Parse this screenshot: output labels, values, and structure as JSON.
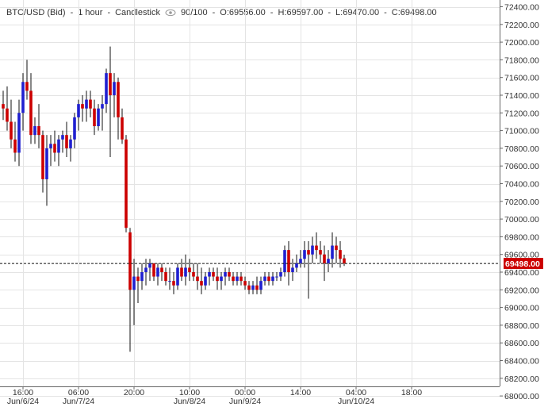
{
  "header": {
    "symbol": "BTC/USD (Bid)",
    "interval": "1 hour",
    "chart_type": "Candlestick",
    "visibility_icon": "eye-icon",
    "bars": "90/100",
    "open": "O:69556.00",
    "high": "H:69597.00",
    "low": "L:69470.00",
    "close": "C:69498.00"
  },
  "colors": {
    "up": "#1f1fd0",
    "down": "#cc0000",
    "grid": "#e4e4e4",
    "axis_text": "#333333",
    "current_price_bg": "#cc0000"
  },
  "chart_data": {
    "type": "candlestick",
    "ylim": [
      68000,
      72500
    ],
    "y_ticks": [
      "72400.00",
      "72200.00",
      "72000.00",
      "71800.00",
      "71600.00",
      "71400.00",
      "71200.00",
      "71000.00",
      "70800.00",
      "70600.00",
      "70400.00",
      "70200.00",
      "70000.00",
      "69800.00",
      "69600.00",
      "69400.00",
      "69200.00",
      "69000.00",
      "68800.00",
      "68600.00",
      "68400.00",
      "68200.00",
      "68000.00"
    ],
    "x_ticks": [
      {
        "time": "16:00",
        "date": "Jun/6/24",
        "index": 5
      },
      {
        "time": "06:00",
        "date": "Jun/7/24",
        "index": 19
      },
      {
        "time": "20:00",
        "date": "",
        "index": 33
      },
      {
        "time": "10:00",
        "date": "Jun/8/24",
        "index": 47
      },
      {
        "time": "00:00",
        "date": "Jun/9/24",
        "index": 61
      },
      {
        "time": "14:00",
        "date": "",
        "index": 75
      },
      {
        "time": "04:00",
        "date": "Jun/10/24",
        "index": 89
      },
      {
        "time": "18:00",
        "date": "",
        "index": 103
      }
    ],
    "current_price": "69498.00",
    "current_value": 69498,
    "candles": [
      [
        71300,
        71450,
        71120,
        71250
      ],
      [
        71250,
        71500,
        71000,
        71100
      ],
      [
        71100,
        71350,
        70800,
        70900
      ],
      [
        70900,
        71100,
        70650,
        70750
      ],
      [
        70750,
        71350,
        70600,
        71200
      ],
      [
        71200,
        71650,
        71000,
        71550
      ],
      [
        71550,
        71800,
        71350,
        71450
      ],
      [
        71450,
        71650,
        70850,
        70950
      ],
      [
        70950,
        71150,
        70850,
        71050
      ],
      [
        71050,
        71300,
        70800,
        70950
      ],
      [
        70950,
        71000,
        70300,
        70450
      ],
      [
        70450,
        70950,
        70150,
        70800
      ],
      [
        70800,
        70950,
        70600,
        70850
      ],
      [
        70850,
        71000,
        70650,
        70750
      ],
      [
        70750,
        70950,
        70600,
        70900
      ],
      [
        70900,
        71000,
        70750,
        70950
      ],
      [
        70950,
        71100,
        70700,
        70800
      ],
      [
        70800,
        70950,
        70650,
        70900
      ],
      [
        70900,
        71200,
        70800,
        71150
      ],
      [
        71150,
        71350,
        71000,
        71300
      ],
      [
        71300,
        71400,
        71100,
        71250
      ],
      [
        71250,
        71450,
        71100,
        71350
      ],
      [
        71350,
        71450,
        71150,
        71250
      ],
      [
        71250,
        71350,
        70950,
        71050
      ],
      [
        71050,
        71300,
        71000,
        71250
      ],
      [
        71250,
        71400,
        71000,
        71300
      ],
      [
        71300,
        71700,
        71200,
        71650
      ],
      [
        71650,
        71950,
        70700,
        71400
      ],
      [
        71400,
        71650,
        71150,
        71550
      ],
      [
        71550,
        71600,
        70900,
        71150
      ],
      [
        71150,
        71250,
        70850,
        70900
      ],
      [
        70900,
        70950,
        69850,
        69900
      ],
      [
        69850,
        69900,
        68500,
        69200
      ],
      [
        69200,
        69550,
        68800,
        69350
      ],
      [
        69350,
        69450,
        69050,
        69300
      ],
      [
        69300,
        69500,
        69200,
        69400
      ],
      [
        69400,
        69550,
        69250,
        69450
      ],
      [
        69450,
        69550,
        69300,
        69500
      ],
      [
        69500,
        69500,
        69300,
        69350
      ],
      [
        69350,
        69500,
        69250,
        69450
      ],
      [
        69450,
        69500,
        69300,
        69400
      ],
      [
        69400,
        69450,
        69250,
        69300
      ],
      [
        69300,
        69450,
        69200,
        69300
      ],
      [
        69300,
        69400,
        69150,
        69250
      ],
      [
        69250,
        69500,
        69200,
        69450
      ],
      [
        69450,
        69550,
        69300,
        69350
      ],
      [
        69350,
        69600,
        69250,
        69450
      ],
      [
        69450,
        69550,
        69300,
        69400
      ],
      [
        69400,
        69500,
        69300,
        69350
      ],
      [
        69350,
        69500,
        69200,
        69300
      ],
      [
        69300,
        69450,
        69150,
        69250
      ],
      [
        69250,
        69400,
        69200,
        69350
      ],
      [
        69350,
        69450,
        69250,
        69400
      ],
      [
        69400,
        69450,
        69300,
        69350
      ],
      [
        69350,
        69450,
        69200,
        69300
      ],
      [
        69300,
        69400,
        69200,
        69350
      ],
      [
        69350,
        69450,
        69250,
        69400
      ],
      [
        69400,
        69450,
        69300,
        69350
      ],
      [
        69350,
        69400,
        69250,
        69300
      ],
      [
        69300,
        69400,
        69250,
        69350
      ],
      [
        69350,
        69400,
        69250,
        69300
      ],
      [
        69300,
        69350,
        69200,
        69250
      ],
      [
        69250,
        69300,
        69150,
        69200
      ],
      [
        69200,
        69300,
        69150,
        69250
      ],
      [
        69250,
        69350,
        69150,
        69200
      ],
      [
        69200,
        69350,
        69150,
        69300
      ],
      [
        69300,
        69400,
        69250,
        69350
      ],
      [
        69350,
        69400,
        69250,
        69300
      ],
      [
        69300,
        69400,
        69250,
        69350
      ],
      [
        69350,
        69400,
        69300,
        69350
      ],
      [
        69350,
        69450,
        69300,
        69400
      ],
      [
        69400,
        69700,
        69350,
        69650
      ],
      [
        69650,
        69750,
        69250,
        69400
      ],
      [
        69400,
        69550,
        69300,
        69450
      ],
      [
        69450,
        69600,
        69400,
        69500
      ],
      [
        69500,
        69650,
        69450,
        69550
      ],
      [
        69550,
        69750,
        69450,
        69650
      ],
      [
        69650,
        69750,
        69100,
        69600
      ],
      [
        69600,
        69800,
        69500,
        69700
      ],
      [
        69700,
        69850,
        69550,
        69650
      ],
      [
        69650,
        69750,
        69500,
        69600
      ],
      [
        69600,
        69700,
        69300,
        69500
      ],
      [
        69500,
        69650,
        69400,
        69550
      ],
      [
        69550,
        69850,
        69450,
        69700
      ],
      [
        69700,
        69800,
        69500,
        69650
      ],
      [
        69650,
        69750,
        69450,
        69550
      ],
      [
        69556,
        69597,
        69470,
        69498
      ]
    ]
  }
}
